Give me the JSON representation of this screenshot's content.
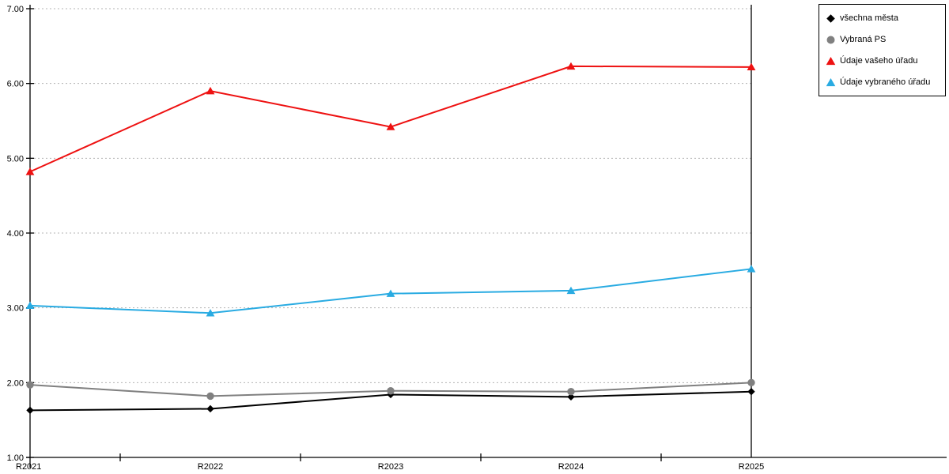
{
  "chart_data": {
    "type": "line",
    "title": "",
    "xlabel": "",
    "ylabel": "",
    "categories": [
      "R2021",
      "R2022",
      "R2023",
      "R2024",
      "R2025"
    ],
    "series": [
      {
        "name": "všechna města",
        "marker": "diamond",
        "color": "#000000",
        "values": [
          1.63,
          1.65,
          1.84,
          1.81,
          1.88
        ]
      },
      {
        "name": "Vybraná PS",
        "marker": "circle",
        "color": "#808080",
        "values": [
          1.97,
          1.82,
          1.89,
          1.88,
          2.0
        ]
      },
      {
        "name": "Údaje vašeho úřadu",
        "marker": "triangle",
        "color": "#ee1111",
        "values": [
          4.82,
          5.9,
          5.42,
          6.23,
          6.22
        ]
      },
      {
        "name": "Údaje vybraného úřadu",
        "marker": "triangle",
        "color": "#29abe2",
        "values": [
          3.03,
          2.93,
          3.19,
          3.23,
          3.52
        ]
      }
    ],
    "ylim": [
      1,
      7
    ],
    "ytick_step": 1,
    "ytick_labels": [
      "1.00",
      "2.00",
      "3.00",
      "4.00",
      "5.00",
      "6.00",
      "7.00"
    ],
    "grid": "horizontal-dotted",
    "gridline_color": "#b3b3b3",
    "axis_color": "#000000",
    "legend_position": "top-right"
  }
}
